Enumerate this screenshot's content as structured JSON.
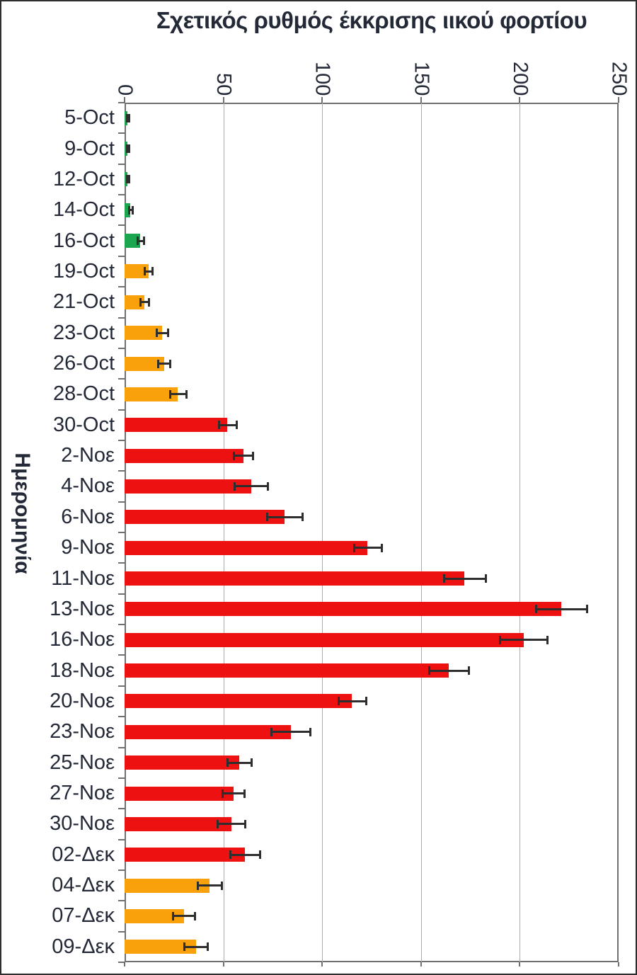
{
  "chart_data": {
    "type": "bar",
    "orientation": "horizontal",
    "title": "Σχετικός ρυθμός έκκρισης ιικού φορτίου",
    "xlabel": "",
    "ylabel": "Ημερομηνία",
    "xlim": [
      0,
      250
    ],
    "xticks": [
      "0",
      "50",
      "100",
      "150",
      "200",
      "250"
    ],
    "grid": true,
    "legend": false,
    "error_bars": "symmetric",
    "categories": [
      "5-Oct",
      "9-Oct",
      "12-Oct",
      "14-Oct",
      "16-Oct",
      "19-Oct",
      "21-Oct",
      "23-Oct",
      "26-Oct",
      "28-Oct",
      "30-Oct",
      "2-Νοε",
      "4-Νοε",
      "6-Νοε",
      "9-Νοε",
      "11-Νοε",
      "13-Νοε",
      "16-Νοε",
      "18-Νοε",
      "20-Νοε",
      "23-Νοε",
      "25-Νοε",
      "27-Νοε",
      "30-Νοε",
      "02-Δεκ",
      "04-Δεκ",
      "07-Δεκ",
      "09-Δεκ"
    ],
    "values": [
      1.5,
      1.5,
      1.5,
      3,
      8,
      12,
      10,
      19,
      20,
      27,
      52,
      60,
      64,
      81,
      123,
      172,
      221,
      202,
      164,
      115,
      84,
      58,
      55,
      54,
      61,
      43,
      30,
      36
    ],
    "errors": [
      0.5,
      0.5,
      0.5,
      1,
      1.5,
      2,
      2,
      3,
      3,
      4,
      4.5,
      5,
      8.5,
      9,
      7,
      10.5,
      13,
      12,
      10,
      7,
      10,
      6,
      5.5,
      7,
      7.5,
      6,
      5.5,
      6
    ],
    "bar_color_names": [
      "green",
      "green",
      "green",
      "green",
      "green",
      "orange",
      "orange",
      "orange",
      "orange",
      "orange",
      "red",
      "red",
      "red",
      "red",
      "red",
      "red",
      "red",
      "red",
      "red",
      "red",
      "red",
      "red",
      "red",
      "red",
      "red",
      "orange",
      "orange",
      "orange"
    ],
    "palette": {
      "green": "#1CA64F",
      "orange": "#F9A10A",
      "red": "#EE1111"
    }
  },
  "style_colors": {
    "text": "#232936",
    "gridline": "#ACACAC",
    "axis_border": "#707070",
    "error_bar": "#2E2E2E",
    "background": "#FFFFFF",
    "outer_border": "#2E2E2E"
  }
}
